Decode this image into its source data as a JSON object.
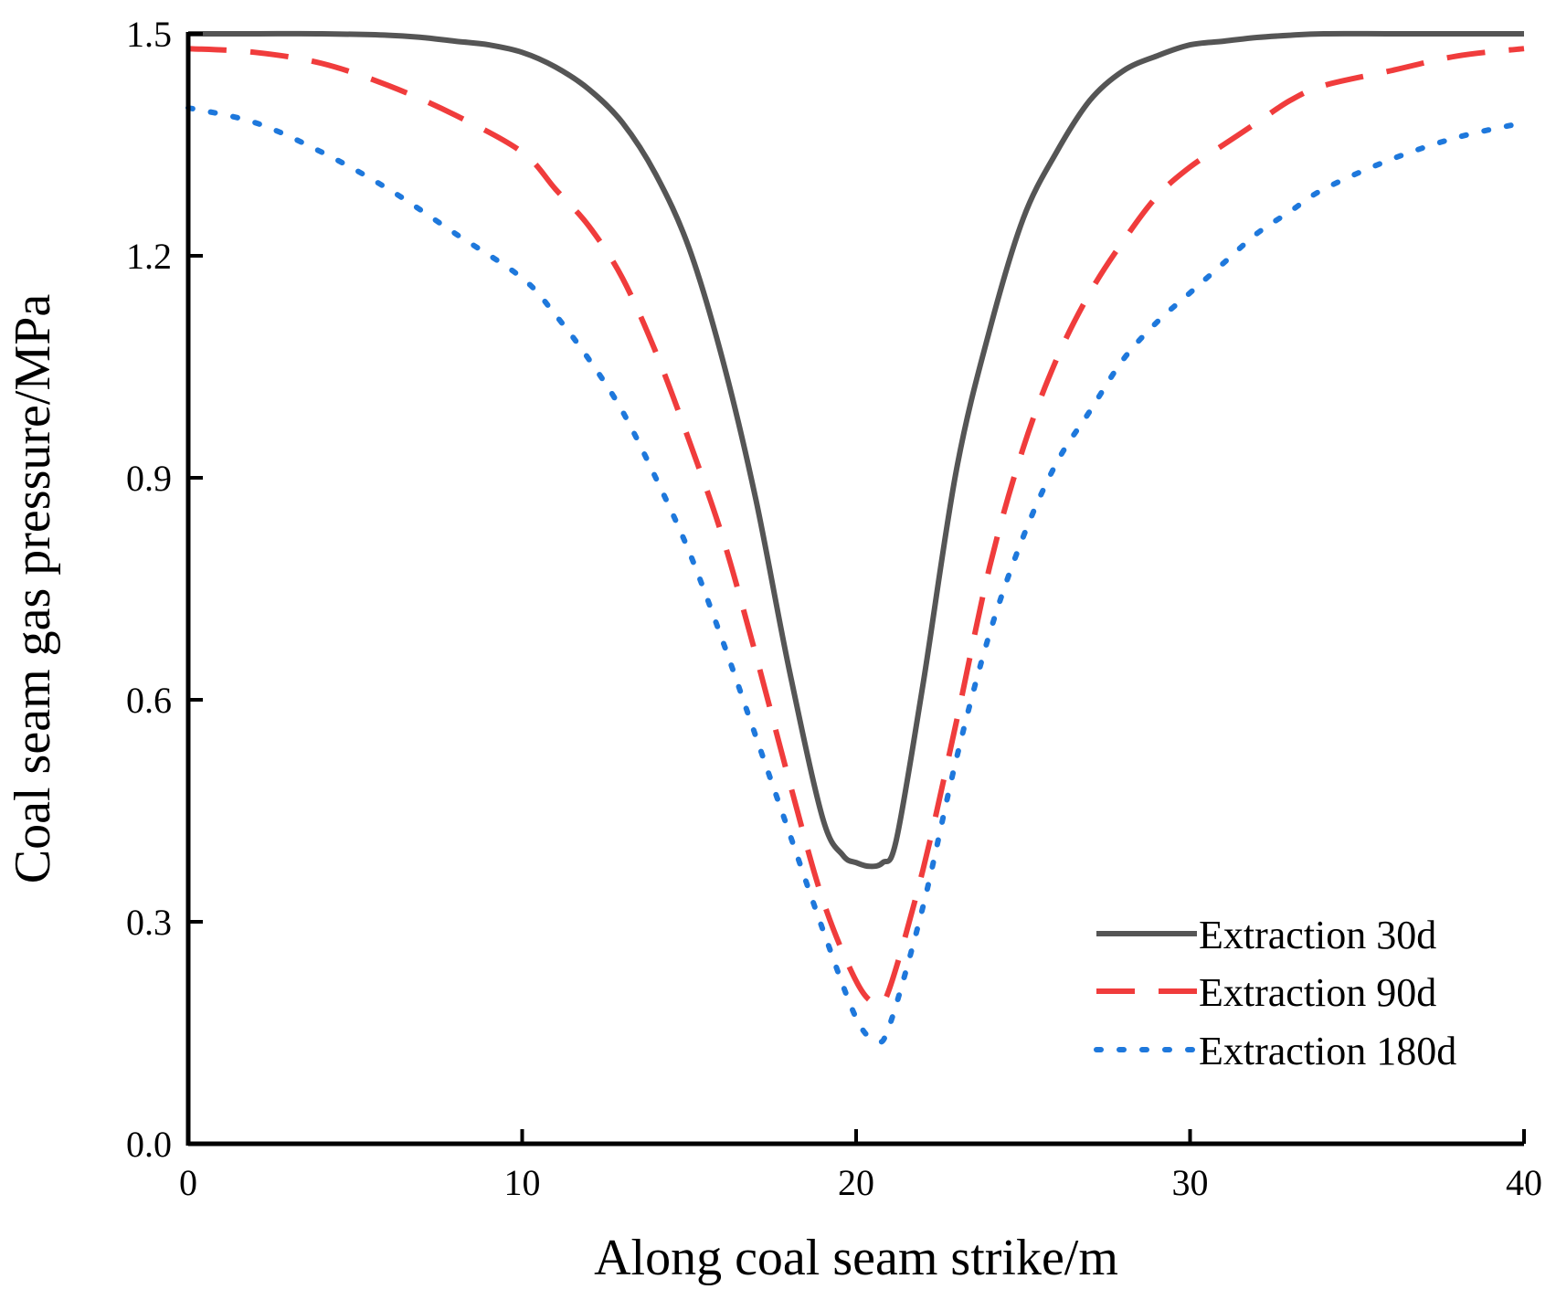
{
  "chart_data": {
    "type": "line",
    "title": "",
    "xlabel": "Along coal seam strike/m",
    "ylabel": "Coal seam gas pressure/MPa",
    "xlim": [
      0,
      40
    ],
    "ylim": [
      0,
      1.5
    ],
    "xticks": [
      0,
      10,
      20,
      30,
      40
    ],
    "xtick_labels": [
      "0",
      "10",
      "20",
      "30",
      "40"
    ],
    "yticks": [
      0,
      0.3,
      0.6,
      0.9,
      1.2,
      1.5
    ],
    "ytick_labels": [
      "0.0",
      "0.3",
      "0.6",
      "0.9",
      "1.2",
      "1.5"
    ],
    "grid": false,
    "legend_position": "bottom-right",
    "series": [
      {
        "name": "Extraction 30d",
        "color": "#555555",
        "style": "solid",
        "x": [
          0,
          2,
          4,
          6,
          7,
          8,
          9,
          10,
          11,
          12,
          13,
          14,
          15,
          16,
          17,
          18,
          19,
          19.6,
          20,
          20.4,
          20.8,
          21.2,
          22,
          23,
          24,
          25,
          26,
          27,
          28,
          29,
          30,
          31,
          32,
          33,
          34,
          36,
          38,
          40
        ],
        "y": [
          1.5,
          1.5,
          1.5,
          1.498,
          1.495,
          1.49,
          1.485,
          1.475,
          1.455,
          1.425,
          1.38,
          1.31,
          1.21,
          1.06,
          0.87,
          0.64,
          0.44,
          0.39,
          0.38,
          0.375,
          0.38,
          0.41,
          0.62,
          0.91,
          1.1,
          1.25,
          1.34,
          1.41,
          1.45,
          1.47,
          1.485,
          1.49,
          1.495,
          1.498,
          1.5,
          1.5,
          1.5,
          1.5
        ]
      },
      {
        "name": "Extraction 90d",
        "color": "#f03c3c",
        "style": "dashed",
        "x": [
          0,
          2,
          4,
          6,
          8,
          10,
          11,
          12,
          13,
          14,
          15,
          16,
          17,
          18,
          19,
          20,
          20.6,
          21,
          22,
          23,
          24,
          25,
          26,
          27,
          28,
          29,
          30,
          31,
          32,
          33,
          34,
          36,
          38,
          40
        ],
        "y": [
          1.48,
          1.475,
          1.46,
          1.43,
          1.39,
          1.34,
          1.29,
          1.24,
          1.17,
          1.07,
          0.95,
          0.82,
          0.66,
          0.49,
          0.33,
          0.22,
          0.19,
          0.21,
          0.37,
          0.57,
          0.78,
          0.94,
          1.06,
          1.15,
          1.22,
          1.28,
          1.32,
          1.35,
          1.38,
          1.41,
          1.43,
          1.45,
          1.47,
          1.48
        ]
      },
      {
        "name": "Extraction 180d",
        "color": "#1e78dc",
        "style": "dotted",
        "x": [
          0,
          2,
          4,
          6,
          8,
          10,
          11,
          12,
          13,
          14,
          15,
          16,
          17,
          18,
          19,
          20,
          20.6,
          21,
          22,
          23,
          24,
          25,
          26,
          27,
          28,
          29,
          30,
          31,
          32,
          33,
          34,
          36,
          38,
          40
        ],
        "y": [
          1.4,
          1.38,
          1.34,
          1.29,
          1.23,
          1.17,
          1.12,
          1.06,
          0.99,
          0.9,
          0.8,
          0.68,
          0.55,
          0.42,
          0.29,
          0.17,
          0.14,
          0.16,
          0.32,
          0.52,
          0.69,
          0.82,
          0.92,
          0.99,
          1.06,
          1.11,
          1.15,
          1.19,
          1.23,
          1.26,
          1.29,
          1.33,
          1.36,
          1.38
        ]
      }
    ]
  }
}
